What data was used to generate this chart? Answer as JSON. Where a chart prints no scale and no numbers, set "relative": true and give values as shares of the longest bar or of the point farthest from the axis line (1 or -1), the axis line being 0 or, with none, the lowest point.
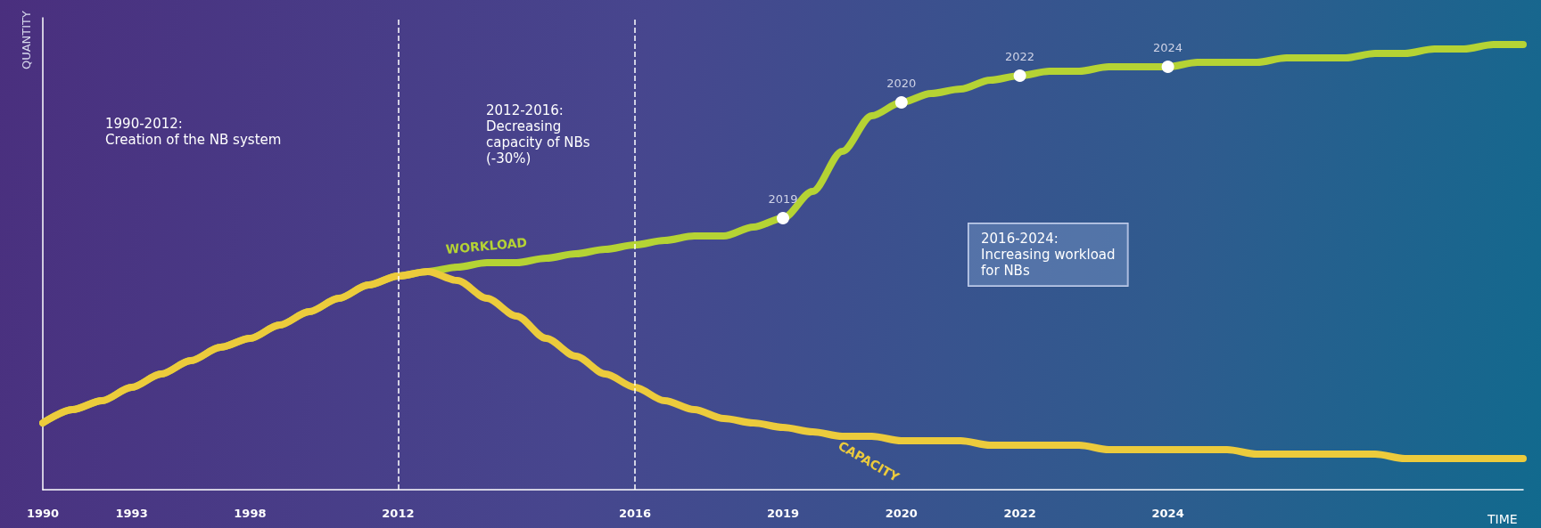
{
  "chart_data": {
    "type": "line",
    "relative": true,
    "xlabel": "TIME",
    "ylabel": "QUANTITY",
    "categories": [
      "1990",
      null,
      null,
      "1993",
      null,
      null,
      null,
      "1998",
      null,
      null,
      null,
      null,
      "2012",
      null,
      null,
      null,
      null,
      null,
      null,
      null,
      "2016",
      null,
      null,
      null,
      null,
      "2019",
      null,
      null,
      null,
      "2020",
      null,
      null,
      null,
      "2022",
      null,
      null,
      null,
      null,
      "2024",
      null,
      null,
      null,
      null,
      null,
      null,
      null,
      null,
      null,
      null,
      null,
      null
    ],
    "series": [
      {
        "name": "WORKLOAD",
        "color": "#b5d334",
        "values": [
          0.15,
          0.18,
          0.2,
          0.23,
          0.26,
          0.29,
          0.32,
          0.34,
          0.37,
          0.4,
          0.43,
          0.46,
          0.48,
          0.49,
          0.5,
          0.51,
          0.51,
          0.52,
          0.53,
          0.54,
          0.55,
          0.56,
          0.57,
          0.57,
          0.59,
          0.61,
          0.67,
          0.76,
          0.84,
          0.87,
          0.89,
          0.9,
          0.92,
          0.93,
          0.94,
          0.94,
          0.95,
          0.95,
          0.95,
          0.96,
          0.96,
          0.96,
          0.97,
          0.97,
          0.97,
          0.98,
          0.98,
          0.99,
          0.99,
          1.0,
          1.0
        ]
      },
      {
        "name": "CAPACITY",
        "color": "#eccb3c",
        "values": [
          0.15,
          0.18,
          0.2,
          0.23,
          0.26,
          0.29,
          0.32,
          0.34,
          0.37,
          0.4,
          0.43,
          0.46,
          0.48,
          0.49,
          0.47,
          0.43,
          0.39,
          0.34,
          0.3,
          0.26,
          0.23,
          0.2,
          0.18,
          0.16,
          0.15,
          0.14,
          0.13,
          0.12,
          0.12,
          0.11,
          0.11,
          0.11,
          0.1,
          0.1,
          0.1,
          0.1,
          0.09,
          0.09,
          0.09,
          0.09,
          0.09,
          0.08,
          0.08,
          0.08,
          0.08,
          0.08,
          0.07,
          0.07,
          0.07,
          0.07,
          0.07
        ]
      }
    ],
    "ref_lines": [
      {
        "axis": "x",
        "value": "2012",
        "color": "#ffffff",
        "line_style": "dashed"
      },
      {
        "axis": "x",
        "value": "2016",
        "color": "#ffffff",
        "line_style": "dashed"
      }
    ],
    "annotations": [
      "1990-2012:\nCreation of the NB system",
      "2012-2016:\nDecreasing\ncapacity of NBs\n(-30%)",
      "2016-2024:\nIncreasing workload\nfor NBs",
      {
        "text": "2019",
        "x": "2019",
        "y": 0.61
      },
      {
        "text": "2020",
        "x": "2020",
        "y": 0.87
      },
      {
        "text": "2022",
        "x": "2022",
        "y": 0.93
      },
      {
        "text": "2024",
        "x": "2024",
        "y": 0.95
      }
    ],
    "legend": false,
    "grid": false,
    "marker": "none",
    "line_style": "solid"
  }
}
